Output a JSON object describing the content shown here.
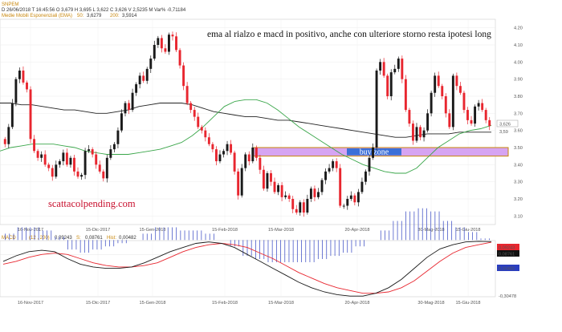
{
  "header": {
    "symbol": "SNPEM",
    "ohlc_line": "D 26/06/2018  T 16:45:56  O 3,679  H 3,695  L 3,622  C 3,626  V 2,5235 M  Var% -0,71184",
    "ema_label": "Medie Mobili Esponenziali (EMA)",
    "ema_50_label": "50:",
    "ema_50_value": "3,6279",
    "ema_200_label": "200:",
    "ema_200_value": "3,5914"
  },
  "annotations": {
    "main_text": "ema al rialzo e macd in positivo, anche con ulteriore storno resta ipotesi long",
    "watermark": "scattacolpending.com",
    "zone_label": "buy zone"
  },
  "last_price_tag": "3,626",
  "last_ema_tag": "3,59",
  "macd_header": {
    "label": "MACD",
    "params": "(12 , 200)",
    "macd_value": "0,09243",
    "signal_label": "S:",
    "signal_value": "0,08761",
    "hist_label": "Hist:",
    "hist_value": "0,00482"
  },
  "macd_tags": {
    "macd": "0,09243",
    "signal": "0,08761",
    "hist": "0,00482",
    "bottom": "-0,30478"
  },
  "colors": {
    "up_candle": "#1a1a1a",
    "down_candle": "#e8262f",
    "ema50": "#3aa64a",
    "ema200": "#222222",
    "zone_fill": "#d6a4f2",
    "zone_border": "#c8860a",
    "zone_label_bg": "#3b6fd8",
    "watermark": "#c8102e",
    "macd_line": "#1a1a1a",
    "signal_line": "#e8262f",
    "hist_bar": "#4a5ac8"
  },
  "chart_data": [
    {
      "type": "candlestick",
      "x_tick_labels": [
        "16-Nov-2017",
        "15-Dic-2017",
        "15-Gen-2018",
        "15-Feb-2018",
        "15-Mar-2018",
        "20-Apr-2018",
        "30-Mag-2018",
        "15-Giu-2018"
      ],
      "y_tick_labels": [
        "3.10",
        "3.20",
        "3.30",
        "3.40",
        "3.50",
        "3.60",
        "3.70",
        "3.80",
        "3.90",
        "4.00",
        "4.10",
        "4.20"
      ],
      "ylim": [
        3.05,
        4.25
      ],
      "close": [
        3.52,
        3.62,
        3.76,
        3.9,
        3.95,
        3.88,
        3.84,
        3.55,
        3.48,
        3.44,
        3.46,
        3.4,
        3.38,
        3.33,
        3.4,
        3.42,
        3.47,
        3.4,
        3.44,
        3.36,
        3.33,
        3.34,
        3.48,
        3.49,
        3.46,
        3.4,
        3.36,
        3.32,
        3.44,
        3.49,
        3.52,
        3.6,
        3.7,
        3.76,
        3.72,
        3.82,
        3.87,
        3.92,
        3.89,
        3.96,
        4.02,
        4.1,
        4.14,
        4.08,
        4.06,
        4.16,
        4.15,
        4.07,
        3.98,
        3.86,
        3.76,
        3.72,
        3.68,
        3.62,
        3.6,
        3.56,
        3.52,
        3.49,
        3.42,
        3.46,
        3.48,
        3.52,
        3.47,
        3.36,
        3.22,
        3.38,
        3.46,
        3.42,
        3.5,
        3.44,
        3.37,
        3.26,
        3.35,
        3.3,
        3.24,
        3.28,
        3.21,
        3.22,
        3.2,
        3.14,
        3.12,
        3.18,
        3.12,
        3.2,
        3.26,
        3.21,
        3.24,
        3.31,
        3.36,
        3.38,
        3.42,
        3.38,
        3.16,
        3.16,
        3.2,
        3.22,
        3.18,
        3.24,
        3.3,
        3.36,
        3.44,
        3.5,
        3.95,
        4.0,
        3.92,
        3.8,
        3.94,
        3.96,
        4.02,
        3.9,
        3.72,
        3.64,
        3.54,
        3.62,
        3.56,
        3.6,
        3.7,
        3.82,
        3.92,
        3.86,
        3.8,
        3.7,
        3.62,
        3.92,
        3.86,
        3.82,
        3.72,
        3.66,
        3.64,
        3.74,
        3.76,
        3.72,
        3.66,
        3.626
      ],
      "ema50": [
        3.48,
        3.5,
        3.51,
        3.52,
        3.52,
        3.52,
        3.51,
        3.5,
        3.48,
        3.47,
        3.46,
        3.46,
        3.46,
        3.47,
        3.48,
        3.49,
        3.51,
        3.53,
        3.57,
        3.62,
        3.68,
        3.74,
        3.77,
        3.78,
        3.78,
        3.76,
        3.72,
        3.67,
        3.62,
        3.58,
        3.54,
        3.5,
        3.46,
        3.43,
        3.4,
        3.38,
        3.36,
        3.35,
        3.35,
        3.38,
        3.44,
        3.5,
        3.54,
        3.58,
        3.6,
        3.61,
        3.63
      ],
      "ema200": [
        3.76,
        3.76,
        3.75,
        3.75,
        3.74,
        3.73,
        3.72,
        3.72,
        3.71,
        3.7,
        3.7,
        3.71,
        3.72,
        3.74,
        3.75,
        3.76,
        3.76,
        3.76,
        3.75,
        3.73,
        3.71,
        3.7,
        3.69,
        3.68,
        3.68,
        3.67,
        3.66,
        3.66,
        3.65,
        3.64,
        3.63,
        3.62,
        3.61,
        3.6,
        3.59,
        3.58,
        3.57,
        3.56,
        3.56,
        3.57,
        3.58,
        3.58,
        3.58,
        3.59,
        3.59,
        3.59,
        3.59
      ],
      "buy_zone": [
        3.45,
        3.5
      ]
    },
    {
      "type": "macd",
      "params": "(12 , 200)",
      "x_tick_labels": [
        "16-Nov-2017",
        "15-Dic-2017",
        "15-Gen-2018",
        "15-Feb-2018",
        "15-Mar-2018",
        "20-Apr-2018",
        "30-Mag-2018",
        "15-Giu-2018"
      ],
      "ylim": [
        -0.3048,
        0.1
      ],
      "macd": [
        -0.05,
        -0.01,
        0.02,
        0.03,
        0.02,
        -0.03,
        -0.07,
        -0.09,
        -0.1,
        -0.1,
        -0.09,
        -0.06,
        -0.02,
        0.02,
        0.05,
        0.08,
        0.09,
        0.08,
        0.05,
        0.0,
        -0.05,
        -0.1,
        -0.15,
        -0.2,
        -0.24,
        -0.27,
        -0.29,
        -0.3,
        -0.3,
        -0.28,
        -0.24,
        -0.18,
        -0.1,
        -0.02,
        0.04,
        0.07,
        0.09,
        0.095,
        0.09243
      ],
      "signal": [
        -0.07,
        -0.05,
        -0.02,
        0.0,
        0.01,
        0.0,
        -0.03,
        -0.06,
        -0.08,
        -0.09,
        -0.09,
        -0.08,
        -0.06,
        -0.02,
        0.02,
        0.05,
        0.07,
        0.08,
        0.07,
        0.05,
        0.01,
        -0.03,
        -0.08,
        -0.13,
        -0.17,
        -0.21,
        -0.24,
        -0.26,
        -0.28,
        -0.28,
        -0.27,
        -0.24,
        -0.19,
        -0.12,
        -0.05,
        0.01,
        0.05,
        0.07,
        0.08761
      ],
      "hist": [
        0.02,
        0.04,
        0.04,
        0.03,
        0.01,
        -0.03,
        -0.04,
        -0.03,
        -0.02,
        -0.01,
        0.0,
        0.02,
        0.04,
        0.04,
        0.03,
        0.03,
        0.02,
        0.0,
        -0.02,
        -0.05,
        -0.06,
        -0.07,
        -0.07,
        -0.07,
        -0.07,
        -0.06,
        -0.05,
        -0.04,
        -0.02,
        0.0,
        0.03,
        0.06,
        0.09,
        0.1,
        0.09,
        0.06,
        0.04,
        0.025,
        0.00482
      ]
    }
  ]
}
